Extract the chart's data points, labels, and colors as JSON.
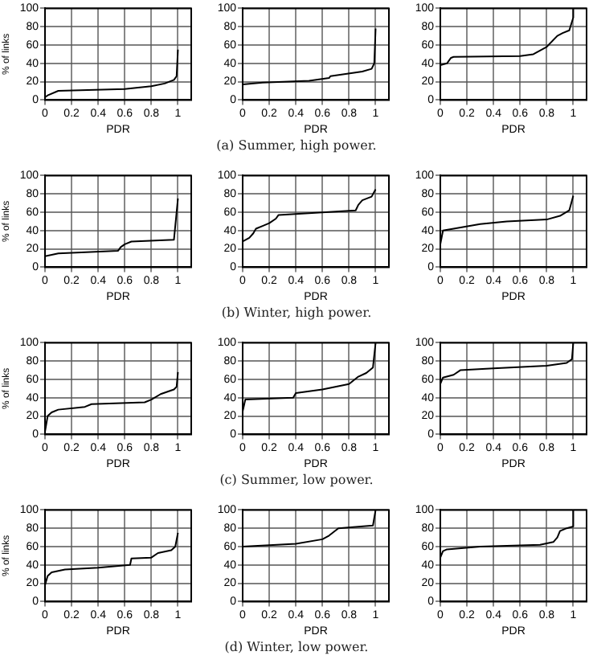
{
  "chart_data": [
    {
      "type": "line",
      "xlabel": "PDR",
      "ylabel": "% of links",
      "color": "#000000",
      "x": [
        0,
        0.02,
        0.1,
        0.6,
        0.8,
        0.9,
        0.97,
        0.99,
        1
      ],
      "values": [
        3,
        5,
        10,
        12,
        15,
        18,
        22,
        26,
        55
      ],
      "xlim": [
        0,
        1.1
      ],
      "xticks": [
        0,
        0.2,
        0.4,
        0.6,
        0.8,
        1
      ],
      "ylim": [
        0,
        100
      ],
      "yticks": [
        0,
        20,
        40,
        60,
        80,
        100
      ],
      "grid": true
    },
    {
      "type": "line",
      "xlabel": "PDR",
      "annotations": [
        "(a) Summer, high power."
      ],
      "color": "#000000",
      "x": [
        0,
        0,
        0.15,
        0.5,
        0.65,
        0.66,
        0.9,
        0.97,
        0.99,
        1
      ],
      "values": [
        0,
        17,
        19,
        21,
        24,
        26,
        31,
        34,
        40,
        78
      ],
      "xlim": [
        0,
        1.1
      ],
      "xticks": [
        0,
        0.2,
        0.4,
        0.6,
        0.8,
        1
      ],
      "ylim": [
        0,
        100
      ],
      "yticks": [
        0,
        20,
        40,
        60,
        80,
        100
      ],
      "grid": true
    },
    {
      "type": "line",
      "xlabel": "PDR",
      "color": "#000000",
      "x": [
        0,
        0,
        0.05,
        0.08,
        0.1,
        0.6,
        0.7,
        0.8,
        0.88,
        0.92,
        0.97,
        1,
        1
      ],
      "values": [
        10,
        38,
        40,
        46,
        47,
        48,
        50,
        58,
        70,
        73,
        76,
        90,
        100
      ],
      "xlim": [
        0,
        1.1
      ],
      "xticks": [
        0,
        0.2,
        0.4,
        0.6,
        0.8,
        1
      ],
      "ylim": [
        0,
        100
      ],
      "yticks": [
        0,
        20,
        40,
        60,
        80,
        100
      ],
      "grid": true
    },
    {
      "type": "line",
      "xlabel": "PDR",
      "ylabel": "% of links",
      "color": "#000000",
      "x": [
        0,
        0,
        0.1,
        0.55,
        0.57,
        0.6,
        0.65,
        0.97,
        0.98,
        1
      ],
      "values": [
        5,
        12,
        15,
        18,
        22,
        25,
        28,
        30,
        45,
        75
      ],
      "xlim": [
        0,
        1.1
      ],
      "xticks": [
        0,
        0.2,
        0.4,
        0.6,
        0.8,
        1
      ],
      "ylim": [
        0,
        100
      ],
      "yticks": [
        0,
        20,
        40,
        60,
        80,
        100
      ],
      "grid": true
    },
    {
      "type": "line",
      "xlabel": "PDR",
      "annotations": [
        "(b) Winter, high power."
      ],
      "color": "#000000",
      "x": [
        0,
        0,
        0.05,
        0.08,
        0.1,
        0.15,
        0.2,
        0.25,
        0.27,
        0.85,
        0.87,
        0.9,
        0.97,
        1
      ],
      "values": [
        20,
        28,
        32,
        37,
        42,
        45,
        48,
        53,
        57,
        62,
        68,
        73,
        77,
        85
      ],
      "xlim": [
        0,
        1.1
      ],
      "xticks": [
        0,
        0.2,
        0.4,
        0.6,
        0.8,
        1
      ],
      "ylim": [
        0,
        100
      ],
      "yticks": [
        0,
        20,
        40,
        60,
        80,
        100
      ],
      "grid": true
    },
    {
      "type": "line",
      "xlabel": "PDR",
      "color": "#000000",
      "x": [
        0,
        0.02,
        0.1,
        0.3,
        0.5,
        0.8,
        0.9,
        0.97,
        1
      ],
      "values": [
        25,
        40,
        42,
        47,
        50,
        52,
        56,
        62,
        78
      ],
      "xlim": [
        0,
        1.1
      ],
      "xticks": [
        0,
        0.2,
        0.4,
        0.6,
        0.8,
        1
      ],
      "ylim": [
        0,
        100
      ],
      "yticks": [
        0,
        20,
        40,
        60,
        80,
        100
      ],
      "grid": true
    },
    {
      "type": "line",
      "xlabel": "PDR",
      "ylabel": "% of links",
      "color": "#000000",
      "x": [
        0,
        0.02,
        0.05,
        0.1,
        0.3,
        0.35,
        0.75,
        0.8,
        0.87,
        0.97,
        0.99,
        1
      ],
      "values": [
        3,
        20,
        24,
        27,
        30,
        33,
        35,
        38,
        44,
        49,
        52,
        68
      ],
      "xlim": [
        0,
        1.1
      ],
      "xticks": [
        0,
        0.2,
        0.4,
        0.6,
        0.8,
        1
      ],
      "ylim": [
        0,
        100
      ],
      "yticks": [
        0,
        20,
        40,
        60,
        80,
        100
      ],
      "grid": true
    },
    {
      "type": "line",
      "xlabel": "PDR",
      "annotations": [
        "(c) Summer, low power."
      ],
      "color": "#000000",
      "x": [
        0,
        0.02,
        0.38,
        0.4,
        0.6,
        0.8,
        0.87,
        0.93,
        0.98,
        1
      ],
      "values": [
        25,
        38,
        40,
        45,
        49,
        55,
        63,
        67,
        73,
        100
      ],
      "xlim": [
        0,
        1.1
      ],
      "xticks": [
        0,
        0.2,
        0.4,
        0.6,
        0.8,
        1
      ],
      "ylim": [
        0,
        100
      ],
      "yticks": [
        0,
        20,
        40,
        60,
        80,
        100
      ],
      "grid": true
    },
    {
      "type": "line",
      "xlabel": "PDR",
      "color": "#000000",
      "x": [
        0,
        0.02,
        0.1,
        0.15,
        0.4,
        0.8,
        0.95,
        0.99,
        1
      ],
      "values": [
        55,
        62,
        65,
        70,
        72,
        75,
        78,
        82,
        100
      ],
      "xlim": [
        0,
        1.1
      ],
      "xticks": [
        0,
        0.2,
        0.4,
        0.6,
        0.8,
        1
      ],
      "ylim": [
        0,
        100
      ],
      "yticks": [
        0,
        20,
        40,
        60,
        80,
        100
      ],
      "grid": true
    },
    {
      "type": "line",
      "xlabel": "PDR",
      "ylabel": "% of links",
      "color": "#000000",
      "x": [
        0,
        0.02,
        0.05,
        0.15,
        0.4,
        0.64,
        0.65,
        0.8,
        0.85,
        0.95,
        0.98,
        1
      ],
      "values": [
        18,
        28,
        32,
        35,
        37,
        40,
        47,
        48,
        53,
        56,
        60,
        75
      ],
      "xlim": [
        0,
        1.1
      ],
      "xticks": [
        0,
        0.2,
        0.4,
        0.6,
        0.8,
        1
      ],
      "ylim": [
        0,
        100
      ],
      "yticks": [
        0,
        20,
        40,
        60,
        80,
        100
      ],
      "grid": true
    },
    {
      "type": "line",
      "xlabel": "PDR",
      "annotations": [
        "(d) Winter, low power."
      ],
      "color": "#000000",
      "x": [
        0,
        0.4,
        0.6,
        0.65,
        0.72,
        0.98,
        1
      ],
      "values": [
        60,
        63,
        68,
        72,
        80,
        83,
        100
      ],
      "xlim": [
        0,
        1.1
      ],
      "xticks": [
        0,
        0.2,
        0.4,
        0.6,
        0.8,
        1
      ],
      "ylim": [
        0,
        100
      ],
      "yticks": [
        0,
        20,
        40,
        60,
        80,
        100
      ],
      "grid": true
    },
    {
      "type": "line",
      "xlabel": "PDR",
      "color": "#000000",
      "x": [
        0,
        0.02,
        0.05,
        0.3,
        0.75,
        0.85,
        0.88,
        0.9,
        0.95,
        1,
        1
      ],
      "values": [
        48,
        55,
        57,
        60,
        62,
        65,
        70,
        77,
        80,
        82,
        100
      ],
      "xlim": [
        0,
        1.1
      ],
      "xticks": [
        0,
        0.2,
        0.4,
        0.6,
        0.8,
        1
      ],
      "ylim": [
        0,
        100
      ],
      "yticks": [
        0,
        20,
        40,
        60,
        80,
        100
      ],
      "grid": true
    }
  ]
}
